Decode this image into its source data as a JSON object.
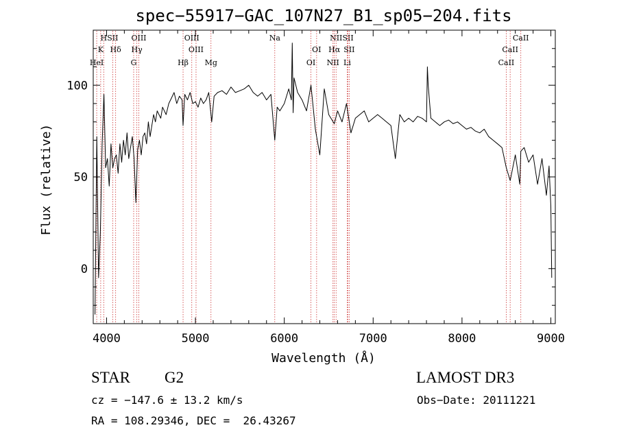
{
  "chart_data": {
    "type": "line",
    "title": "spec−55917−GAC_107N27_B1_sp05−204.fits",
    "xlabel": "Wavelength (Å)",
    "ylabel": "Flux (relative)",
    "xlim": [
      3850,
      9050
    ],
    "ylim": [
      -30,
      130
    ],
    "xticks": [
      4000,
      5000,
      6000,
      7000,
      8000,
      9000
    ],
    "yticks": [
      0,
      50,
      100
    ],
    "grid": false,
    "series": [
      {
        "name": "flux",
        "color": "#000000",
        "x": [
          3870,
          3890,
          3910,
          3930,
          3950,
          3970,
          3990,
          4010,
          4030,
          4050,
          4070,
          4090,
          4110,
          4130,
          4150,
          4170,
          4190,
          4210,
          4230,
          4250,
          4270,
          4290,
          4310,
          4330,
          4350,
          4370,
          4390,
          4410,
          4430,
          4450,
          4470,
          4490,
          4510,
          4530,
          4550,
          4570,
          4590,
          4610,
          4630,
          4650,
          4670,
          4700,
          4730,
          4760,
          4790,
          4820,
          4850,
          4861,
          4880,
          4910,
          4940,
          4970,
          5000,
          5030,
          5060,
          5090,
          5120,
          5150,
          5183,
          5210,
          5250,
          5300,
          5350,
          5400,
          5450,
          5500,
          5550,
          5600,
          5650,
          5700,
          5750,
          5800,
          5850,
          5893,
          5920,
          5950,
          6000,
          6050,
          6080,
          6090,
          6100,
          6110,
          6150,
          6200,
          6250,
          6300,
          6350,
          6400,
          6450,
          6500,
          6563,
          6600,
          6650,
          6700,
          6750,
          6800,
          6850,
          6900,
          6950,
          7000,
          7050,
          7100,
          7150,
          7200,
          7250,
          7300,
          7350,
          7400,
          7450,
          7500,
          7550,
          7600,
          7610,
          7620,
          7650,
          7700,
          7750,
          7800,
          7850,
          7900,
          7950,
          8000,
          8050,
          8100,
          8150,
          8200,
          8250,
          8300,
          8350,
          8400,
          8450,
          8498,
          8542,
          8600,
          8650,
          8662,
          8700,
          8750,
          8800,
          8850,
          8900,
          8950,
          8980,
          9000,
          9010
        ],
        "values": [
          -25,
          72,
          -5,
          20,
          68,
          95,
          55,
          60,
          45,
          68,
          55,
          60,
          62,
          52,
          68,
          58,
          70,
          62,
          74,
          60,
          66,
          72,
          60,
          36,
          65,
          70,
          62,
          72,
          74,
          68,
          80,
          72,
          78,
          84,
          80,
          86,
          84,
          82,
          88,
          86,
          84,
          90,
          93,
          96,
          90,
          94,
          92,
          78,
          95,
          92,
          96,
          90,
          91,
          88,
          93,
          90,
          92,
          96,
          80,
          94,
          96,
          97,
          95,
          99,
          96,
          97,
          98,
          100,
          96,
          94,
          96,
          92,
          95,
          70,
          88,
          86,
          90,
          98,
          92,
          123,
          85,
          104,
          96,
          92,
          86,
          100,
          76,
          62,
          98,
          84,
          79,
          86,
          80,
          90,
          74,
          82,
          84,
          86,
          80,
          82,
          84,
          82,
          80,
          78,
          60,
          84,
          80,
          82,
          80,
          83,
          82,
          80,
          110,
          100,
          82,
          80,
          78,
          80,
          81,
          79,
          80,
          78,
          76,
          77,
          75,
          74,
          76,
          72,
          70,
          68,
          66,
          55,
          48,
          62,
          46,
          64,
          66,
          58,
          62,
          46,
          60,
          40,
          56,
          34,
          -5
        ]
      }
    ],
    "line_markers": [
      {
        "label": "H",
        "wavelength": 3968
      },
      {
        "label": "K",
        "wavelength": 3934
      },
      {
        "label": "HeI",
        "wavelength": 3889
      },
      {
        "label": "SII",
        "wavelength": 4069
      },
      {
        "label": "Hδ",
        "wavelength": 4102
      },
      {
        "label": "G",
        "wavelength": 4305
      },
      {
        "label": "OIII",
        "wavelength": 4363
      },
      {
        "label": "Hγ",
        "wavelength": 4341
      },
      {
        "label": "Hβ",
        "wavelength": 4861
      },
      {
        "label": "OIII",
        "wavelength": 4959
      },
      {
        "label": "OIII",
        "wavelength": 5007
      },
      {
        "label": "Mg",
        "wavelength": 5175
      },
      {
        "label": "Na",
        "wavelength": 5893
      },
      {
        "label": "OI",
        "wavelength": 6364
      },
      {
        "label": "OI",
        "wavelength": 6300
      },
      {
        "label": "NII",
        "wavelength": 6583
      },
      {
        "label": "Hα",
        "wavelength": 6563
      },
      {
        "label": "NII",
        "wavelength": 6548
      },
      {
        "label": "SII",
        "wavelength": 6717
      },
      {
        "label": "SII",
        "wavelength": 6731
      },
      {
        "label": "Li",
        "wavelength": 6708
      },
      {
        "label": "CaII",
        "wavelength": 8662
      },
      {
        "label": "CaII",
        "wavelength": 8542
      },
      {
        "label": "CaII",
        "wavelength": 8498
      }
    ]
  },
  "footer": {
    "class": "STAR",
    "subclass": "G2",
    "survey": "LAMOST DR3",
    "cz": "cz = −147.6 ± 13.2 km/s",
    "obs_date": "Obs−Date: 20111221",
    "radec": "RA = 108.29346, DEC =  26.43267"
  },
  "colors": {
    "spectrum": "#000000",
    "line_marker": "#cc3333",
    "axis": "#000000"
  }
}
